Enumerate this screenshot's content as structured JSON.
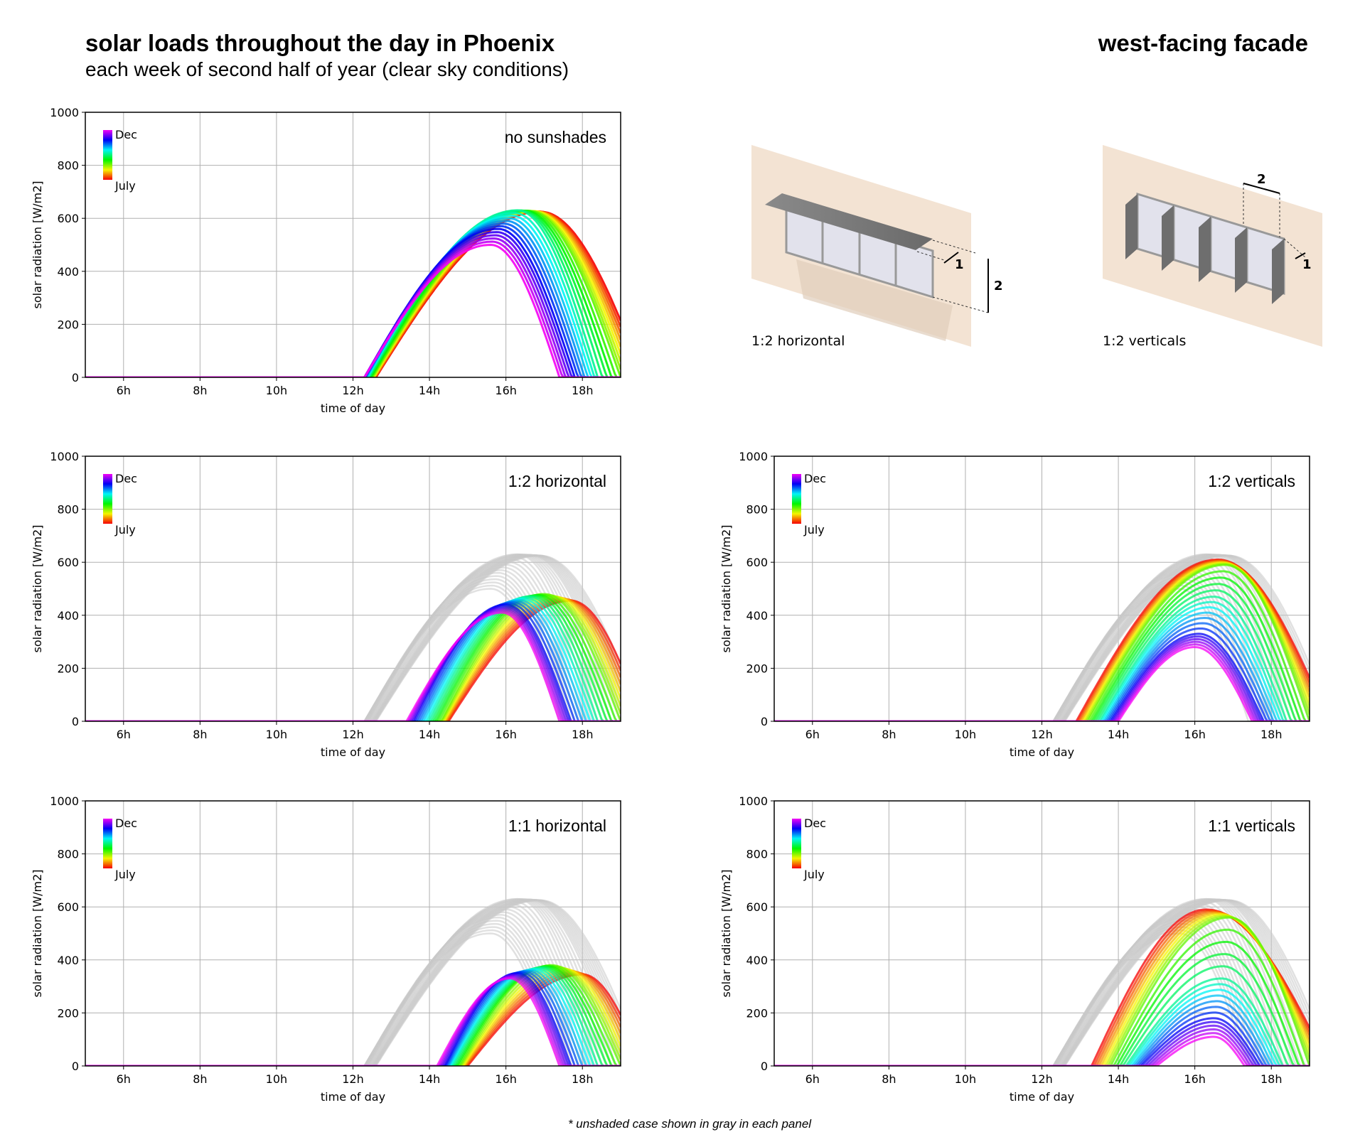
{
  "header": {
    "title": "solar loads throughout the day in Phoenix",
    "subtitle": "each week of second half of year (clear sky conditions)",
    "right_title": "west-facing facade"
  },
  "illustrations": [
    {
      "label": "1:2 horizontal",
      "dim_depth": "1",
      "dim_spacing": "2"
    },
    {
      "label": "1:2 verticals",
      "dim_depth": "1",
      "dim_spacing": "2"
    }
  ],
  "footnote": "* unshaded case shown in gray in each panel",
  "colors": {
    "wall": "#f3e3d3",
    "shade": "#7a7a7a",
    "glass": "#e2e2ec",
    "grid": "#b0b0b0",
    "unshaded": "#c8c8c8"
  },
  "chart_data": [
    {
      "type": "line",
      "title": "no sunshades",
      "xlabel": "time of day",
      "ylabel": "solar radiation [W/m2]",
      "xlim": [
        5,
        19
      ],
      "ylim": [
        0,
        1000
      ],
      "xticks": [
        6,
        8,
        10,
        12,
        14,
        16,
        18
      ],
      "xtick_labels": [
        "6h",
        "8h",
        "10h",
        "12h",
        "14h",
        "16h",
        "18h"
      ],
      "yticks": [
        0,
        200,
        400,
        600,
        800,
        1000
      ],
      "ytick_labels": [
        "0",
        "200",
        "400",
        "600",
        "800",
        "1000"
      ],
      "grid": true,
      "legend": {
        "top": "Dec",
        "bottom": "July",
        "placement": "top-left"
      },
      "weeks": 26,
      "show_unshaded": false,
      "series_anchors_fields": [
        "week",
        "start_h",
        "peak_h",
        "peak_wm2",
        "end_h"
      ],
      "series_anchors": [
        [
          0,
          12.6,
          16.9,
          625,
          19.6
        ],
        [
          8,
          12.5,
          16.6,
          628,
          19.0
        ],
        [
          13,
          12.4,
          16.3,
          630,
          18.4
        ],
        [
          20,
          12.3,
          15.8,
          560,
          17.8
        ],
        [
          25,
          12.3,
          15.6,
          500,
          17.4
        ]
      ]
    },
    {
      "type": "line",
      "title": "1:2 horizontal",
      "xlabel": "time of day",
      "ylabel": "solar radiation [W/m2]",
      "xlim": [
        5,
        19
      ],
      "ylim": [
        0,
        1000
      ],
      "xticks": [
        6,
        8,
        10,
        12,
        14,
        16,
        18
      ],
      "xtick_labels": [
        "6h",
        "8h",
        "10h",
        "12h",
        "14h",
        "16h",
        "18h"
      ],
      "yticks": [
        0,
        200,
        400,
        600,
        800,
        1000
      ],
      "ytick_labels": [
        "0",
        "200",
        "400",
        "600",
        "800",
        "1000"
      ],
      "grid": true,
      "legend": {
        "top": "Dec",
        "bottom": "July",
        "placement": "top-left"
      },
      "weeks": 26,
      "show_unshaded": true,
      "series_anchors_fields": [
        "week",
        "start_h",
        "peak_h",
        "peak_wm2",
        "end_h"
      ],
      "series_anchors": [
        [
          0,
          14.5,
          17.7,
          455,
          19.6
        ],
        [
          8,
          14.3,
          17.0,
          480,
          19.0
        ],
        [
          13,
          14.0,
          16.6,
          470,
          18.4
        ],
        [
          20,
          13.6,
          16.0,
          440,
          17.7
        ],
        [
          25,
          13.4,
          15.9,
          410,
          17.4
        ]
      ]
    },
    {
      "type": "line",
      "title": "1:2 verticals",
      "xlabel": "time of day",
      "ylabel": "solar radiation [W/m2]",
      "xlim": [
        5,
        19
      ],
      "ylim": [
        0,
        1000
      ],
      "xticks": [
        6,
        8,
        10,
        12,
        14,
        16,
        18
      ],
      "xtick_labels": [
        "6h",
        "8h",
        "10h",
        "12h",
        "14h",
        "16h",
        "18h"
      ],
      "yticks": [
        0,
        200,
        400,
        600,
        800,
        1000
      ],
      "ytick_labels": [
        "0",
        "200",
        "400",
        "600",
        "800",
        "1000"
      ],
      "grid": true,
      "legend": {
        "top": "Dec",
        "bottom": "July",
        "placement": "top-left"
      },
      "weeks": 26,
      "show_unshaded": true,
      "series_anchors_fields": [
        "week",
        "start_h",
        "peak_h",
        "peak_wm2",
        "end_h"
      ],
      "series_anchors": [
        [
          0,
          12.9,
          16.6,
          610,
          19.5
        ],
        [
          8,
          13.2,
          16.8,
          590,
          19.0
        ],
        [
          13,
          13.5,
          16.5,
          470,
          18.4
        ],
        [
          20,
          13.8,
          16.1,
          330,
          17.8
        ],
        [
          25,
          14.0,
          16.0,
          280,
          17.5
        ]
      ]
    },
    {
      "type": "line",
      "title": "1:1 horizontal",
      "xlabel": "time of day",
      "ylabel": "solar radiation [W/m2]",
      "xlim": [
        5,
        19
      ],
      "ylim": [
        0,
        1000
      ],
      "xticks": [
        6,
        8,
        10,
        12,
        14,
        16,
        18
      ],
      "xtick_labels": [
        "6h",
        "8h",
        "10h",
        "12h",
        "14h",
        "16h",
        "18h"
      ],
      "yticks": [
        0,
        200,
        400,
        600,
        800,
        1000
      ],
      "ytick_labels": [
        "0",
        "200",
        "400",
        "600",
        "800",
        "1000"
      ],
      "grid": true,
      "legend": {
        "top": "Dec",
        "bottom": "July",
        "placement": "top-left"
      },
      "weeks": 26,
      "show_unshaded": true,
      "series_anchors_fields": [
        "week",
        "start_h",
        "peak_h",
        "peak_wm2",
        "end_h"
      ],
      "series_anchors": [
        [
          0,
          15.0,
          18.0,
          345,
          19.6
        ],
        [
          8,
          14.8,
          17.2,
          380,
          19.0
        ],
        [
          13,
          14.6,
          16.9,
          370,
          18.4
        ],
        [
          20,
          14.4,
          16.3,
          350,
          17.7
        ],
        [
          25,
          14.2,
          16.1,
          330,
          17.4
        ]
      ]
    },
    {
      "type": "line",
      "title": "1:1 verticals",
      "xlabel": "time of day",
      "ylabel": "solar radiation [W/m2]",
      "xlim": [
        5,
        19
      ],
      "ylim": [
        0,
        1000
      ],
      "xticks": [
        6,
        8,
        10,
        12,
        14,
        16,
        18
      ],
      "xtick_labels": [
        "6h",
        "8h",
        "10h",
        "12h",
        "14h",
        "16h",
        "18h"
      ],
      "yticks": [
        0,
        200,
        400,
        600,
        800,
        1000
      ],
      "ytick_labels": [
        "0",
        "200",
        "400",
        "600",
        "800",
        "1000"
      ],
      "grid": true,
      "legend": {
        "top": "Dec",
        "bottom": "July",
        "placement": "top-left"
      },
      "weeks": 26,
      "show_unshaded": true,
      "series_anchors_fields": [
        "week",
        "start_h",
        "peak_h",
        "peak_wm2",
        "end_h"
      ],
      "series_anchors": [
        [
          0,
          13.3,
          16.3,
          590,
          19.5
        ],
        [
          8,
          13.8,
          16.9,
          560,
          19.0
        ],
        [
          13,
          14.2,
          16.7,
          330,
          18.3
        ],
        [
          20,
          14.6,
          16.5,
          180,
          17.7
        ],
        [
          25,
          15.0,
          16.5,
          110,
          17.3
        ]
      ]
    }
  ]
}
